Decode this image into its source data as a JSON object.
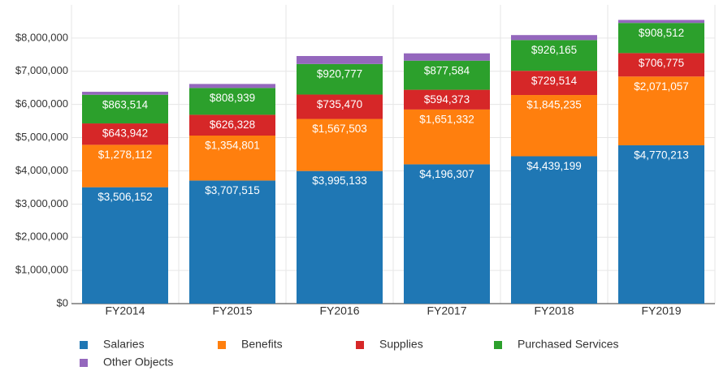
{
  "chart_data": {
    "type": "stacked_bar",
    "categories": [
      "FY2014",
      "FY2015",
      "FY2016",
      "FY2017",
      "FY2018",
      "FY2019"
    ],
    "series": [
      {
        "name": "Salaries",
        "color": "#1f77b4",
        "values": [
          3506152,
          3707515,
          3995133,
          4196307,
          4439199,
          4770213
        ],
        "value_labels": [
          "$3,506,152",
          "$3,707,515",
          "$3,995,133",
          "$4,196,307",
          "$4,439,199",
          "$4,770,213"
        ]
      },
      {
        "name": "Benefits",
        "color": "#ff7f0e",
        "values": [
          1278112,
          1354801,
          1567503,
          1651332,
          1845235,
          2071057
        ],
        "value_labels": [
          "$1,278,112",
          "$1,354,801",
          "$1,567,503",
          "$1,651,332",
          "$1,845,235",
          "$2,071,057"
        ]
      },
      {
        "name": "Supplies",
        "color": "#d62728",
        "values": [
          643942,
          626328,
          735470,
          594373,
          729514,
          706775
        ],
        "value_labels": [
          "$643,942",
          "$626,328",
          "$735,470",
          "$594,373",
          "$729,514",
          "$706,775"
        ]
      },
      {
        "name": "Purchased Services",
        "color": "#2ca02c",
        "values": [
          863514,
          808939,
          920777,
          877584,
          926165,
          908512
        ],
        "value_labels": [
          "$863,514",
          "$808,939",
          "$920,777",
          "$877,584",
          "$926,165",
          "$908,512"
        ]
      },
      {
        "name": "Other Objects",
        "color": "#9467bd",
        "values": [
          90000,
          120000,
          240000,
          220000,
          150000,
          90000
        ]
      }
    ],
    "ylim": [
      0,
      9000000
    ],
    "yticks": [
      {
        "value": 0,
        "label": "$0"
      },
      {
        "value": 1000000,
        "label": "$1,000,000"
      },
      {
        "value": 2000000,
        "label": "$2,000,000"
      },
      {
        "value": 3000000,
        "label": "$3,000,000"
      },
      {
        "value": 4000000,
        "label": "$4,000,000"
      },
      {
        "value": 5000000,
        "label": "$5,000,000"
      },
      {
        "value": 6000000,
        "label": "$6,000,000"
      },
      {
        "value": 7000000,
        "label": "$7,000,000"
      },
      {
        "value": 8000000,
        "label": "$8,000,000"
      }
    ],
    "grid": true,
    "legend": "bottom"
  }
}
